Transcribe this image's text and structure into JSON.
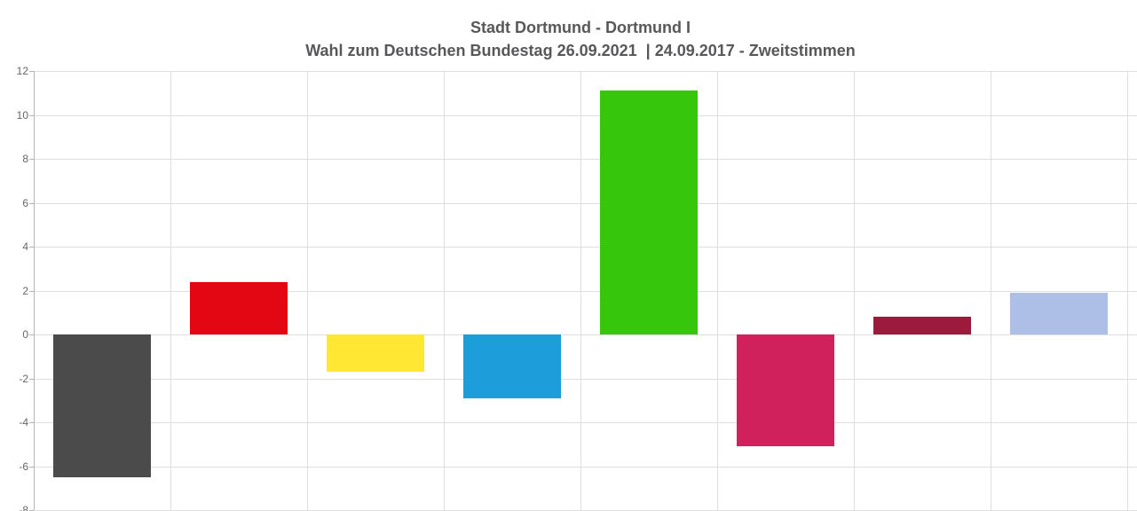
{
  "header": {
    "title": "Stadt Dortmund - Dortmund I",
    "subtitle": "Wahl zum Deutschen Bundestag 26.09.2021  | 24.09.2017 - Zweitstimmen"
  },
  "chart_data": {
    "type": "bar",
    "title": "Stadt Dortmund - Dortmund I",
    "subtitle": "Wahl zum Deutschen Bundestag 26.09.2021  | 24.09.2017 - Zweitstimmen",
    "categories": [
      "dark-gray-bar",
      "red-bar",
      "yellow-bar",
      "light-blue-bar",
      "green-bar",
      "magenta-bar",
      "dark-red-bar",
      "lavender-bar"
    ],
    "values": [
      -6.5,
      2.4,
      -1.7,
      -2.9,
      11.1,
      -5.1,
      0.8,
      1.9
    ],
    "bar_colors": [
      "#4b4b4b",
      "#e30613",
      "#ffe733",
      "#1e9ddb",
      "#36c70c",
      "#d1215c",
      "#9c1b3d",
      "#adbee7"
    ],
    "ylabel": "",
    "xlabel": "",
    "ylim": [
      -8,
      12
    ],
    "y_ticks": [
      12,
      10,
      8,
      6,
      4,
      2,
      0,
      -2,
      -4,
      -6,
      -8
    ],
    "grid": true,
    "legend_position": "none"
  },
  "colors": {
    "background": "#ffffff",
    "title_text": "#58585a",
    "tick_text": "#666666",
    "gridline": "#dedede",
    "axis_line": "#b5b5b5"
  }
}
